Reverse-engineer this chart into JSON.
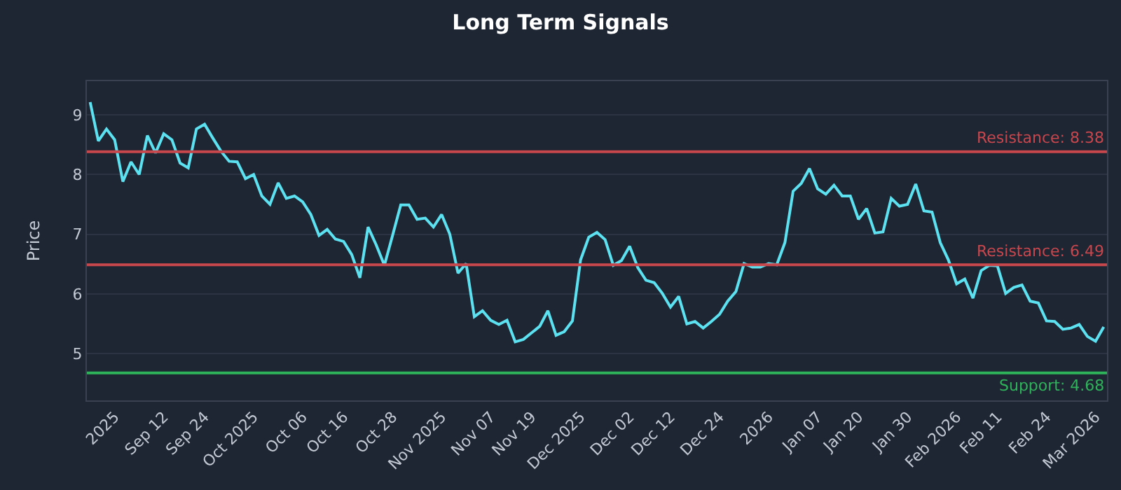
{
  "chart_data": {
    "type": "line",
    "title": "Long Term Signals",
    "ylabel": "Price",
    "categories": [
      null,
      null,
      null,
      "2025",
      null,
      null,
      null,
      null,
      null,
      "Sep 12",
      null,
      null,
      null,
      null,
      "Sep 24",
      null,
      null,
      null,
      null,
      null,
      "Oct 2025",
      null,
      null,
      null,
      null,
      null,
      "Oct 06",
      null,
      null,
      null,
      null,
      "Oct 16",
      null,
      null,
      null,
      null,
      null,
      "Oct 28",
      null,
      null,
      null,
      null,
      null,
      "Nov 2025",
      null,
      null,
      null,
      null,
      null,
      "Nov 07",
      null,
      null,
      null,
      null,
      "Nov 19",
      null,
      null,
      null,
      null,
      null,
      "Dec 2025",
      null,
      null,
      null,
      null,
      null,
      "Dec 02",
      null,
      null,
      null,
      null,
      "Dec 12",
      null,
      null,
      null,
      null,
      null,
      "Dec 24",
      null,
      null,
      null,
      null,
      null,
      "2026",
      null,
      null,
      null,
      null,
      null,
      "Jan 07",
      null,
      null,
      null,
      null,
      "Jan 20",
      null,
      null,
      null,
      null,
      null,
      "Jan 30",
      null,
      null,
      null,
      null,
      null,
      "Feb 2026",
      null,
      null,
      null,
      null,
      "Feb 11",
      null,
      null,
      null,
      null,
      null,
      "Feb 24",
      null,
      null,
      null,
      null,
      null,
      "Mar 2026",
      null
    ],
    "series": [
      {
        "color": "#5ce1f0",
        "values": [
          9.21,
          8.56,
          8.76,
          8.58,
          7.88,
          8.21,
          8.0,
          8.65,
          8.36,
          8.68,
          8.58,
          8.19,
          8.11,
          8.76,
          8.84,
          8.61,
          8.39,
          8.22,
          8.21,
          7.93,
          8.0,
          7.64,
          7.5,
          7.86,
          7.6,
          7.64,
          7.54,
          7.33,
          6.98,
          7.08,
          6.92,
          6.88,
          6.66,
          6.27,
          7.12,
          6.82,
          6.48,
          6.98,
          7.49,
          7.49,
          7.25,
          7.27,
          7.12,
          7.33,
          7.0,
          6.35,
          6.51,
          5.62,
          5.72,
          5.56,
          5.49,
          5.56,
          5.2,
          5.24,
          5.35,
          5.46,
          5.72,
          5.31,
          5.37,
          5.55,
          6.57,
          6.95,
          7.03,
          6.91,
          6.48,
          6.56,
          6.8,
          6.44,
          6.23,
          6.19,
          6.01,
          5.78,
          5.96,
          5.5,
          5.54,
          5.43,
          5.54,
          5.66,
          5.88,
          6.04,
          6.51,
          6.45,
          6.45,
          6.51,
          6.49,
          6.86,
          7.72,
          7.85,
          8.1,
          7.76,
          7.67,
          7.82,
          7.64,
          7.64,
          7.25,
          7.43,
          7.02,
          7.04,
          7.6,
          7.47,
          7.5,
          7.84,
          7.39,
          7.37,
          6.86,
          6.57,
          6.17,
          6.25,
          5.93,
          6.39,
          6.48,
          6.47,
          6.01,
          6.11,
          6.15,
          5.88,
          5.85,
          5.55,
          5.54,
          5.41,
          5.43,
          5.49,
          5.29,
          5.21,
          5.45
        ]
      }
    ],
    "ylim": [
      4.22,
      9.56
    ],
    "yticks": [
      5,
      6,
      7,
      8,
      9
    ],
    "ref_lines": [
      {
        "axis": "y",
        "value": 8.38,
        "label": "Resistance: 8.38",
        "color": "#c8474d"
      },
      {
        "axis": "y",
        "value": 6.49,
        "label": "Resistance: 6.49",
        "color": "#c8474d"
      },
      {
        "axis": "y",
        "value": 4.68,
        "label": "Support: 4.68",
        "color": "#2eb35a"
      }
    ],
    "grid": "y",
    "marker": "none",
    "line_style": "solid"
  }
}
